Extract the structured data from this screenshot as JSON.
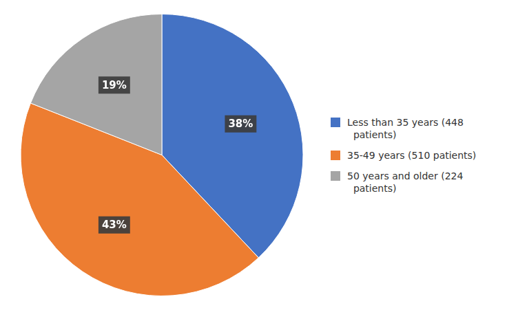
{
  "chart_data": {
    "type": "pie",
    "categories": [
      "Less than 35 years (448\n  patients)",
      "35-49 years (510 patients)",
      "50 years and older (224\n  patients)"
    ],
    "values": [
      38,
      43,
      19
    ],
    "value_labels": [
      "38%",
      "43%",
      "19%"
    ],
    "colors": [
      "#4472C4",
      "#ED7D31",
      "#A5A5A5"
    ],
    "data_labels": true,
    "legend": "right"
  }
}
